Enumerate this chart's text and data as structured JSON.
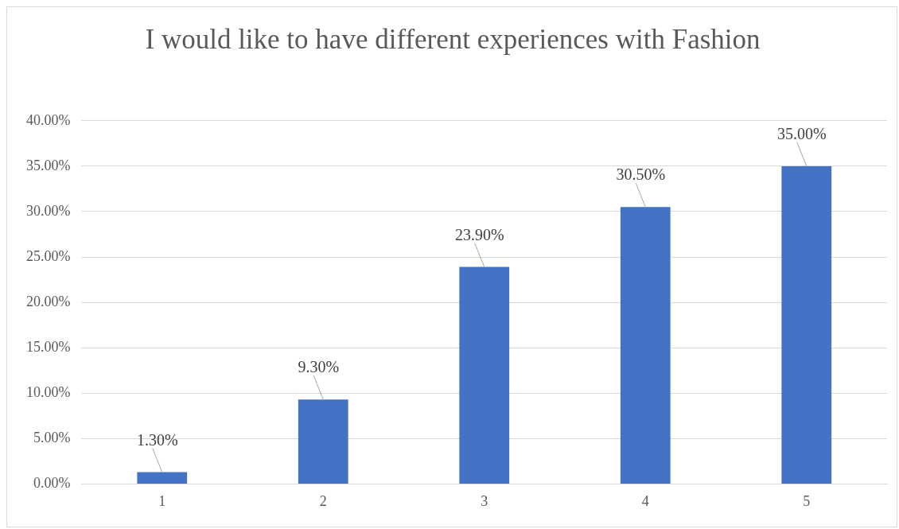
{
  "chart_data": {
    "type": "bar",
    "title": "I would like to have different experiences with Fashion",
    "categories": [
      "1",
      "2",
      "3",
      "4",
      "5"
    ],
    "values": [
      1.3,
      9.3,
      23.9,
      30.5,
      35.0
    ],
    "value_labels": [
      "1.30%",
      "9.30%",
      "23.90%",
      "30.50%",
      "35.00%"
    ],
    "color": "#4472c4",
    "ylim": [
      0,
      40
    ],
    "yticks": [
      {
        "value": 0,
        "label": "0.00%"
      },
      {
        "value": 5,
        "label": "5.00%"
      },
      {
        "value": 10,
        "label": "10.00%"
      },
      {
        "value": 15,
        "label": "15.00%"
      },
      {
        "value": 20,
        "label": "20.00%"
      },
      {
        "value": 25,
        "label": "25.00%"
      },
      {
        "value": 30,
        "label": "30.00%"
      },
      {
        "value": 35,
        "label": "35.00%"
      },
      {
        "value": 40,
        "label": "40.00%"
      }
    ],
    "grid": "y",
    "legend": false
  }
}
